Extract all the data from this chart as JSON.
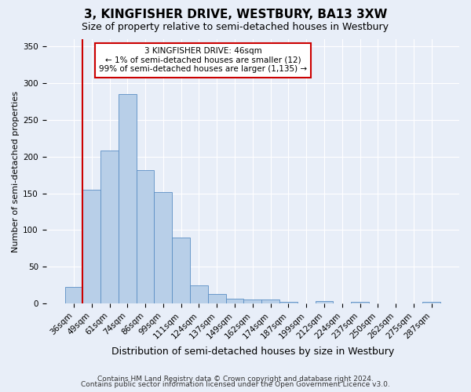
{
  "title": "3, KINGFISHER DRIVE, WESTBURY, BA13 3XW",
  "subtitle": "Size of property relative to semi-detached houses in Westbury",
  "xlabel": "Distribution of semi-detached houses by size in Westbury",
  "ylabel": "Number of semi-detached properties",
  "categories": [
    "36sqm",
    "49sqm",
    "61sqm",
    "74sqm",
    "86sqm",
    "99sqm",
    "111sqm",
    "124sqm",
    "137sqm",
    "149sqm",
    "162sqm",
    "174sqm",
    "187sqm",
    "199sqm",
    "212sqm",
    "224sqm",
    "237sqm",
    "250sqm",
    "262sqm",
    "275sqm",
    "287sqm"
  ],
  "values": [
    22,
    155,
    208,
    285,
    182,
    152,
    90,
    25,
    13,
    6,
    5,
    5,
    2,
    0,
    3,
    0,
    2,
    0,
    0,
    0,
    2
  ],
  "bar_color": "#b8cfe8",
  "bar_edge_color": "#5b8ec4",
  "highlight_color": "#cc0000",
  "annotation_text": "3 KINGFISHER DRIVE: 46sqm\n← 1% of semi-detached houses are smaller (12)\n99% of semi-detached houses are larger (1,135) →",
  "annotation_box_color": "#ffffff",
  "annotation_box_edge_color": "#cc0000",
  "ylim": [
    0,
    360
  ],
  "yticks": [
    0,
    50,
    100,
    150,
    200,
    250,
    300,
    350
  ],
  "footer1": "Contains HM Land Registry data © Crown copyright and database right 2024.",
  "footer2": "Contains public sector information licensed under the Open Government Licence v3.0.",
  "background_color": "#e8eef8",
  "plot_background_color": "#e8eef8",
  "title_fontsize": 11,
  "subtitle_fontsize": 9,
  "tick_fontsize": 7.5,
  "ylabel_fontsize": 8,
  "xlabel_fontsize": 9,
  "footer_fontsize": 6.5,
  "annot_fontsize": 7.5
}
